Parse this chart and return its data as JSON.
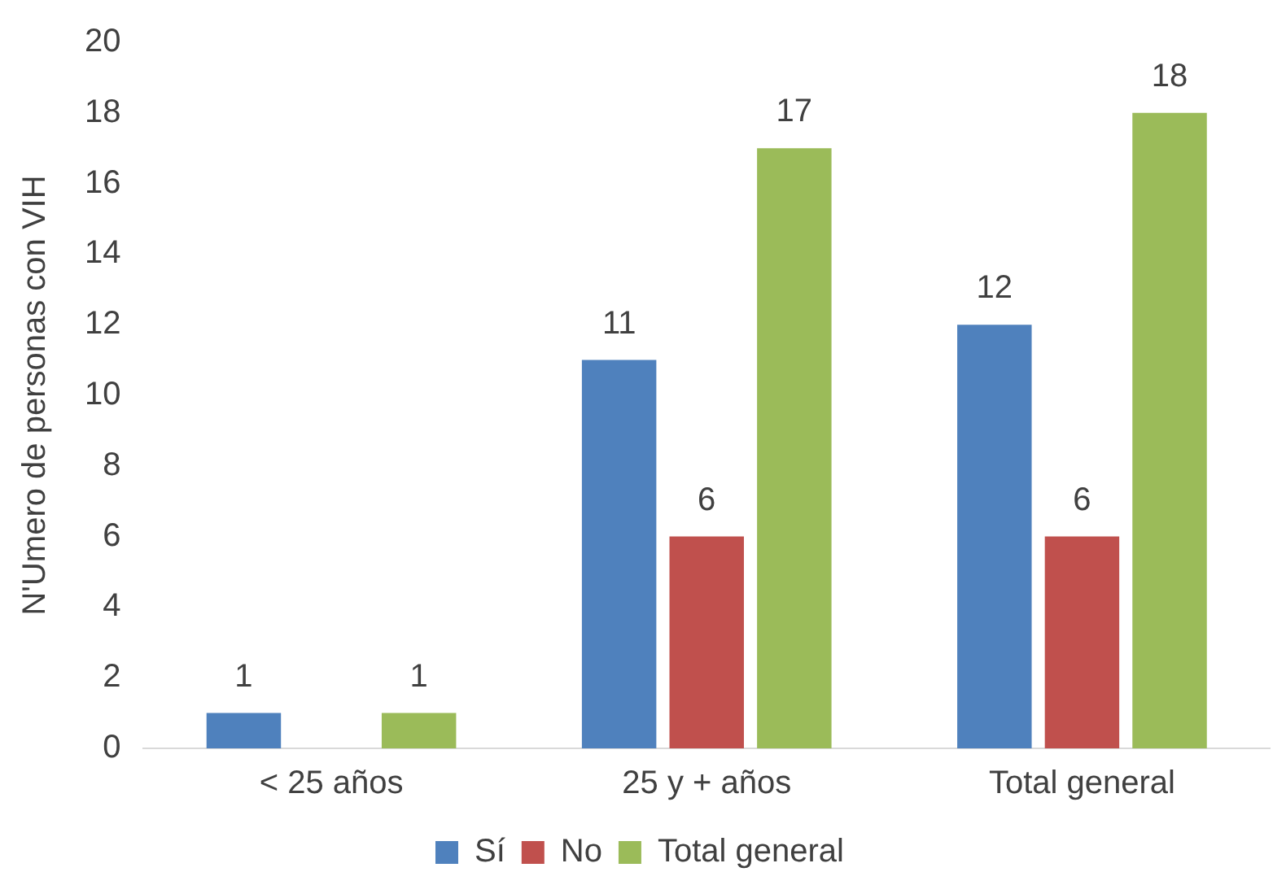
{
  "chart_data": {
    "type": "bar",
    "ylabel": "N'Umero de personas con VIH",
    "categories": [
      "< 25 años",
      "25 y + años",
      "Total general"
    ],
    "series": [
      {
        "name": "Sí",
        "color": "#4f81bd",
        "values": [
          1,
          11,
          12
        ]
      },
      {
        "name": "No",
        "color": "#c0504d",
        "values": [
          null,
          6,
          6
        ]
      },
      {
        "name": "Total general",
        "color": "#9bbb59",
        "values": [
          1,
          17,
          18
        ]
      }
    ],
    "ylim": [
      0,
      20
    ],
    "yticks": [
      0,
      2,
      4,
      6,
      8,
      10,
      12,
      14,
      16,
      18,
      20
    ],
    "grid": false,
    "legend": "bottom",
    "data_labels": true
  }
}
